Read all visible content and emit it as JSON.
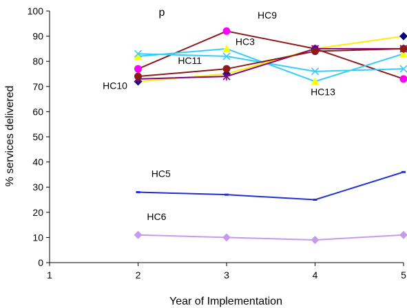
{
  "chart_data": {
    "type": "line",
    "title": "p",
    "xlabel": "Year of Implementation",
    "ylabel": "% services delivered",
    "xlim": [
      1,
      5
    ],
    "ylim": [
      0,
      100
    ],
    "x_ticks": [
      1,
      2,
      3,
      4,
      5
    ],
    "y_ticks": [
      0,
      10,
      20,
      30,
      40,
      50,
      60,
      70,
      80,
      90,
      100
    ],
    "grid": false,
    "legend": "none",
    "series": [
      {
        "name": "HC9",
        "color": "#8B1A1A",
        "marker": "circle",
        "marker_color": "#FF00FF",
        "x": [
          2,
          3,
          4,
          5
        ],
        "y": [
          77,
          92,
          85,
          73
        ]
      },
      {
        "name": "HC3",
        "color": "#33CCFF",
        "marker": "triangle",
        "marker_color": "#FFFF00",
        "x": [
          2,
          3,
          4,
          5
        ],
        "y": [
          82,
          85,
          72,
          83
        ]
      },
      {
        "name": "HC11",
        "color": "#33CCFF",
        "marker": "x",
        "marker_color": "#33CCFF",
        "x": [
          2,
          3,
          4,
          5
        ],
        "y": [
          83,
          82,
          76,
          77
        ]
      },
      {
        "name": "HC10",
        "color": "#FFEE00",
        "marker": "diamond",
        "marker_color": "#000080",
        "x": [
          2,
          3,
          4,
          5
        ],
        "y": [
          72,
          75,
          85,
          90
        ]
      },
      {
        "name": "",
        "color": "#800080",
        "marker": "star",
        "marker_color": "#800080",
        "x": [
          2,
          3,
          4,
          5
        ],
        "y": [
          73,
          74,
          85,
          85
        ]
      },
      {
        "name": "HC13",
        "color": "#8B1A1A",
        "marker": "circle",
        "marker_color": "#8B1A1A",
        "x": [
          2,
          3,
          4,
          5
        ],
        "y": [
          74,
          77,
          84,
          85
        ]
      },
      {
        "name": "HC5",
        "color": "#1F2FD6",
        "marker": "dash",
        "marker_color": "#1F2FD6",
        "x": [
          2,
          3,
          4,
          5
        ],
        "y": [
          28,
          27,
          25,
          36
        ]
      },
      {
        "name": "HC6",
        "color": "#C79BEA",
        "marker": "diamond",
        "marker_color": "#C79BEA",
        "x": [
          2,
          3,
          4,
          5
        ],
        "y": [
          11,
          10,
          9,
          11
        ]
      }
    ],
    "annotations": [
      {
        "text": "HC9",
        "x": 3.35,
        "y": 97
      },
      {
        "text": "HC3",
        "x": 3.1,
        "y": 86.5
      },
      {
        "text": "HC11",
        "x": 2.45,
        "y": 79
      },
      {
        "text": "HC10",
        "x": 1.6,
        "y": 69
      },
      {
        "text": "HC13",
        "x": 3.95,
        "y": 66.5
      },
      {
        "text": "HC5",
        "x": 2.15,
        "y": 34
      },
      {
        "text": "HC6",
        "x": 2.1,
        "y": 17
      }
    ]
  }
}
